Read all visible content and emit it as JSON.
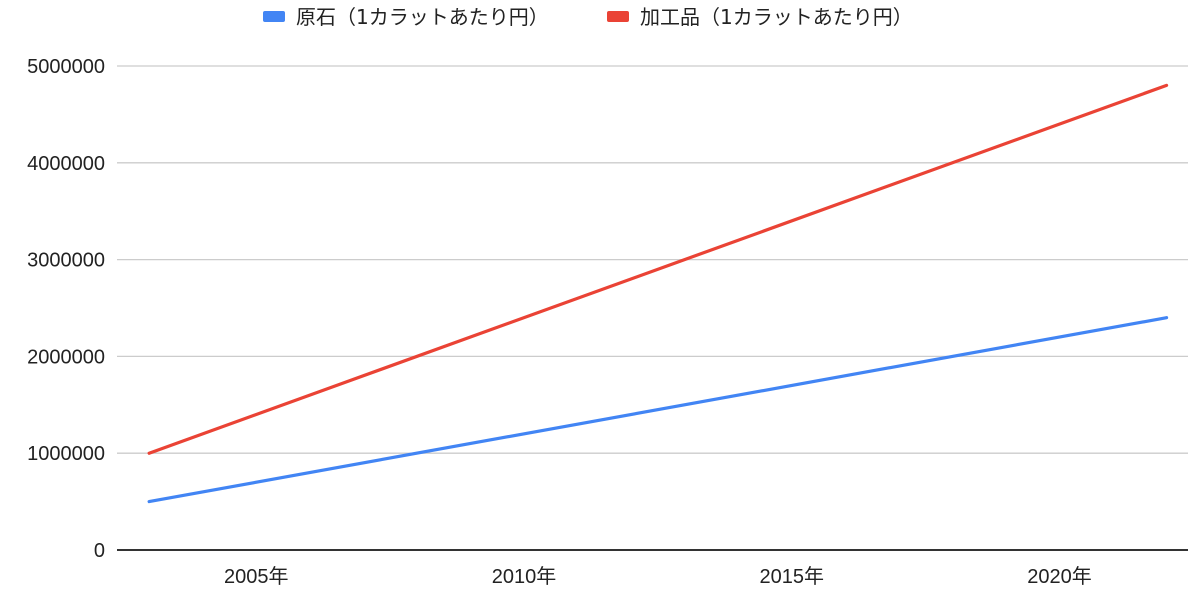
{
  "colors": {
    "raw": "#4285F4",
    "processed": "#EA4335",
    "grid": "#cccccc",
    "axis": "#333333",
    "text": "#222222"
  },
  "chart_data": {
    "type": "line",
    "title": "",
    "xlabel": "",
    "ylabel": "",
    "x": [
      2003,
      2022
    ],
    "xlim": [
      2002.4,
      2022.4
    ],
    "ylim": [
      0,
      5000000
    ],
    "yticks": [
      0,
      1000000,
      2000000,
      3000000,
      4000000,
      5000000
    ],
    "ytick_labels": [
      "0",
      "1000000",
      "2000000",
      "3000000",
      "4000000",
      "5000000"
    ],
    "xticks": [
      2005,
      2010,
      2015,
      2020
    ],
    "xtick_labels": [
      "2005年",
      "2010年",
      "2015年",
      "2020年"
    ],
    "grid": true,
    "legend_position": "top-center",
    "series": [
      {
        "name": "原石（1カラットあたり円）",
        "color": "#4285F4",
        "x": [
          2003,
          2022
        ],
        "values": [
          500000,
          2400000
        ]
      },
      {
        "name": "加工品（1カラットあたり円）",
        "color": "#EA4335",
        "x": [
          2003,
          2022
        ],
        "values": [
          1000000,
          4800000
        ]
      }
    ]
  }
}
